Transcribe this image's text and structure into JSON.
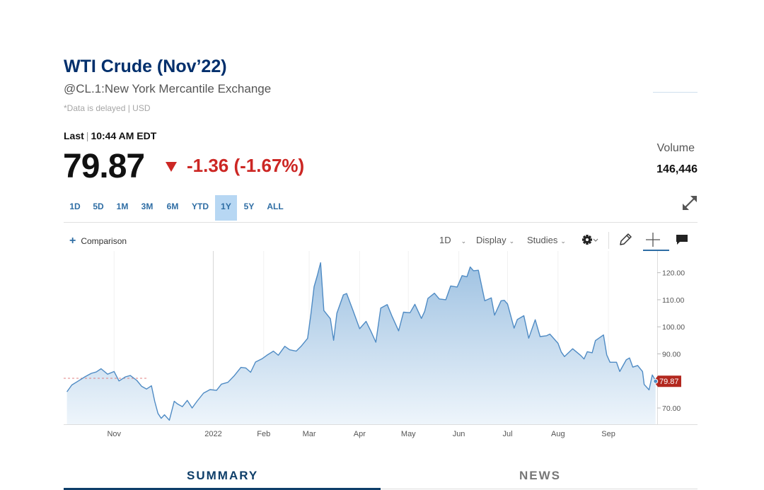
{
  "quote": {
    "title": "WTI Crude (Nov’22)",
    "subtitle": "@CL.1:New York Mercantile Exchange",
    "delay_note": "*Data is delayed | USD",
    "last_label": "Last",
    "last_time": "10:44 AM EDT",
    "price": "79.87",
    "change": "-1.36 (-1.67%)",
    "volume_label": "Volume",
    "volume_value": "146,446"
  },
  "ranges": [
    {
      "label": "1D",
      "active": false
    },
    {
      "label": "5D",
      "active": false
    },
    {
      "label": "1M",
      "active": false
    },
    {
      "label": "3M",
      "active": false
    },
    {
      "label": "6M",
      "active": false
    },
    {
      "label": "YTD",
      "active": false
    },
    {
      "label": "1Y",
      "active": true
    },
    {
      "label": "5Y",
      "active": false
    },
    {
      "label": "ALL",
      "active": false
    }
  ],
  "toolbar": {
    "comparison_label": "Comparison",
    "interval_label": "1D",
    "display_label": "Display",
    "studies_label": "Studies"
  },
  "tabs": {
    "summary": "SUMMARY",
    "news": "NEWS"
  },
  "colors": {
    "accent": "#2e6da4",
    "title": "#002f6c",
    "negative": "#cc2724",
    "line": "#4f8bc4",
    "fill_top": "#9fc2e2",
    "fill_bottom": "#eef5fb"
  },
  "icons": [
    "plus-icon",
    "gear-icon",
    "pencil-icon",
    "crosshair-icon",
    "comment-icon",
    "expand-icon",
    "down-triangle-icon"
  ],
  "chart_data": {
    "type": "area",
    "x_tick_labels": [
      "Nov",
      "2022",
      "Feb",
      "Mar",
      "Apr",
      "May",
      "Jun",
      "Jul",
      "Aug",
      "Sep"
    ],
    "y_tick_labels": [
      "70.00",
      "90.00",
      "100.00",
      "110.00",
      "120.00"
    ],
    "ylim": [
      64,
      128
    ],
    "current_value": 79.87,
    "current_label": "79.87",
    "grid": true,
    "series": [
      {
        "points": [
          [
            "2021-10-03",
            76.0
          ],
          [
            "2021-10-06",
            78.5
          ],
          [
            "2021-10-10",
            80.0
          ],
          [
            "2021-10-14",
            81.5
          ],
          [
            "2021-10-18",
            82.8
          ],
          [
            "2021-10-21",
            83.3
          ],
          [
            "2021-10-24",
            84.5
          ],
          [
            "2021-10-28",
            82.5
          ],
          [
            "2021-11-01",
            83.5
          ],
          [
            "2021-11-04",
            80.0
          ],
          [
            "2021-11-08",
            81.5
          ],
          [
            "2021-11-11",
            82.0
          ],
          [
            "2021-11-15",
            80.2
          ],
          [
            "2021-11-18",
            78.0
          ],
          [
            "2021-11-21",
            77.0
          ],
          [
            "2021-11-24",
            78.2
          ],
          [
            "2021-11-26",
            72.5
          ],
          [
            "2021-11-28",
            68.0
          ],
          [
            "2021-11-30",
            66.2
          ],
          [
            "2021-12-02",
            67.5
          ],
          [
            "2021-12-05",
            65.5
          ],
          [
            "2021-12-08",
            72.5
          ],
          [
            "2021-12-10",
            71.5
          ],
          [
            "2021-12-13",
            70.5
          ],
          [
            "2021-12-16",
            72.8
          ],
          [
            "2021-12-19",
            70.0
          ],
          [
            "2021-12-22",
            72.5
          ],
          [
            "2021-12-26",
            75.5
          ],
          [
            "2021-12-30",
            76.8
          ],
          [
            "2022-01-03",
            76.5
          ],
          [
            "2022-01-06",
            78.8
          ],
          [
            "2022-01-10",
            79.5
          ],
          [
            "2022-01-14",
            82.0
          ],
          [
            "2022-01-18",
            85.0
          ],
          [
            "2022-01-21",
            84.8
          ],
          [
            "2022-01-24",
            83.2
          ],
          [
            "2022-01-27",
            87.0
          ],
          [
            "2022-01-31",
            88.2
          ],
          [
            "2022-02-03",
            89.5
          ],
          [
            "2022-02-07",
            91.0
          ],
          [
            "2022-02-10",
            89.5
          ],
          [
            "2022-02-14",
            92.8
          ],
          [
            "2022-02-17",
            91.5
          ],
          [
            "2022-02-21",
            91.0
          ],
          [
            "2022-02-24",
            92.8
          ],
          [
            "2022-02-28",
            95.7
          ],
          [
            "2022-03-02",
            104.5
          ],
          [
            "2022-03-04",
            114.8
          ],
          [
            "2022-03-06",
            119.0
          ],
          [
            "2022-03-08",
            123.7
          ],
          [
            "2022-03-10",
            106.0
          ],
          [
            "2022-03-14",
            103.0
          ],
          [
            "2022-03-16",
            95.0
          ],
          [
            "2022-03-18",
            105.0
          ],
          [
            "2022-03-22",
            111.8
          ],
          [
            "2022-03-24",
            112.3
          ],
          [
            "2022-03-28",
            105.9
          ],
          [
            "2022-04-01",
            99.3
          ],
          [
            "2022-04-05",
            102.0
          ],
          [
            "2022-04-08",
            98.3
          ],
          [
            "2022-04-11",
            94.3
          ],
          [
            "2022-04-14",
            106.9
          ],
          [
            "2022-04-18",
            108.2
          ],
          [
            "2022-04-21",
            103.8
          ],
          [
            "2022-04-25",
            98.5
          ],
          [
            "2022-04-28",
            105.4
          ],
          [
            "2022-05-02",
            105.2
          ],
          [
            "2022-05-05",
            108.3
          ],
          [
            "2022-05-09",
            103.1
          ],
          [
            "2022-05-11",
            105.7
          ],
          [
            "2022-05-13",
            110.5
          ],
          [
            "2022-05-17",
            112.4
          ],
          [
            "2022-05-20",
            110.3
          ],
          [
            "2022-05-24",
            110.0
          ],
          [
            "2022-05-27",
            115.1
          ],
          [
            "2022-05-31",
            114.7
          ],
          [
            "2022-06-03",
            118.9
          ],
          [
            "2022-06-06",
            118.5
          ],
          [
            "2022-06-08",
            122.1
          ],
          [
            "2022-06-10",
            120.7
          ],
          [
            "2022-06-13",
            120.9
          ],
          [
            "2022-06-15",
            115.3
          ],
          [
            "2022-06-17",
            109.6
          ],
          [
            "2022-06-21",
            110.7
          ],
          [
            "2022-06-23",
            104.3
          ],
          [
            "2022-06-27",
            109.6
          ],
          [
            "2022-06-29",
            109.8
          ],
          [
            "2022-07-01",
            108.4
          ],
          [
            "2022-07-05",
            99.5
          ],
          [
            "2022-07-07",
            102.7
          ],
          [
            "2022-07-11",
            104.1
          ],
          [
            "2022-07-14",
            95.8
          ],
          [
            "2022-07-18",
            102.6
          ],
          [
            "2022-07-21",
            96.4
          ],
          [
            "2022-07-25",
            96.7
          ],
          [
            "2022-07-27",
            97.3
          ],
          [
            "2022-08-01",
            93.9
          ],
          [
            "2022-08-03",
            90.7
          ],
          [
            "2022-08-05",
            89.0
          ],
          [
            "2022-08-10",
            91.9
          ],
          [
            "2022-08-15",
            89.4
          ],
          [
            "2022-08-17",
            88.1
          ],
          [
            "2022-08-19",
            90.8
          ],
          [
            "2022-08-22",
            90.4
          ],
          [
            "2022-08-24",
            94.9
          ],
          [
            "2022-08-29",
            97.0
          ],
          [
            "2022-08-31",
            89.6
          ],
          [
            "2022-09-02",
            86.9
          ],
          [
            "2022-09-06",
            86.9
          ],
          [
            "2022-09-08",
            83.5
          ],
          [
            "2022-09-12",
            87.8
          ],
          [
            "2022-09-14",
            88.5
          ],
          [
            "2022-09-16",
            85.1
          ],
          [
            "2022-09-19",
            85.7
          ],
          [
            "2022-09-22",
            83.5
          ],
          [
            "2022-09-23",
            78.7
          ],
          [
            "2022-09-26",
            76.7
          ],
          [
            "2022-09-28",
            82.2
          ],
          [
            "2022-09-29",
            81.2
          ],
          [
            "2022-09-30",
            79.87
          ]
        ]
      }
    ]
  }
}
